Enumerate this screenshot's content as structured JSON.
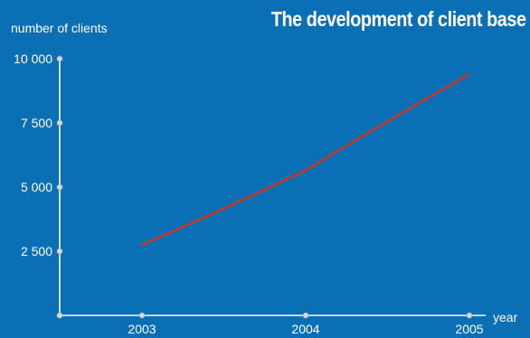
{
  "chart_data": {
    "type": "line",
    "title": "The development of client base",
    "xlabel": "year",
    "ylabel": "number of clients",
    "categories": [
      "2003",
      "2004",
      "2005"
    ],
    "x_tick_labels": [
      "2003",
      "2004",
      "2005"
    ],
    "y_tick_values": [
      2500,
      5000,
      7500,
      10000
    ],
    "y_tick_labels": [
      "2 500",
      "5 000",
      "7 500",
      "10 000"
    ],
    "ylim": [
      0,
      10000
    ],
    "grid": false,
    "series": [
      {
        "values": [
          2750,
          5650,
          9400
        ]
      }
    ],
    "colors": {
      "background": "#0a6fb5",
      "axis": "#ffffff",
      "line": "#c0392b",
      "tick_marker_fill": "#d9d9d9"
    }
  }
}
